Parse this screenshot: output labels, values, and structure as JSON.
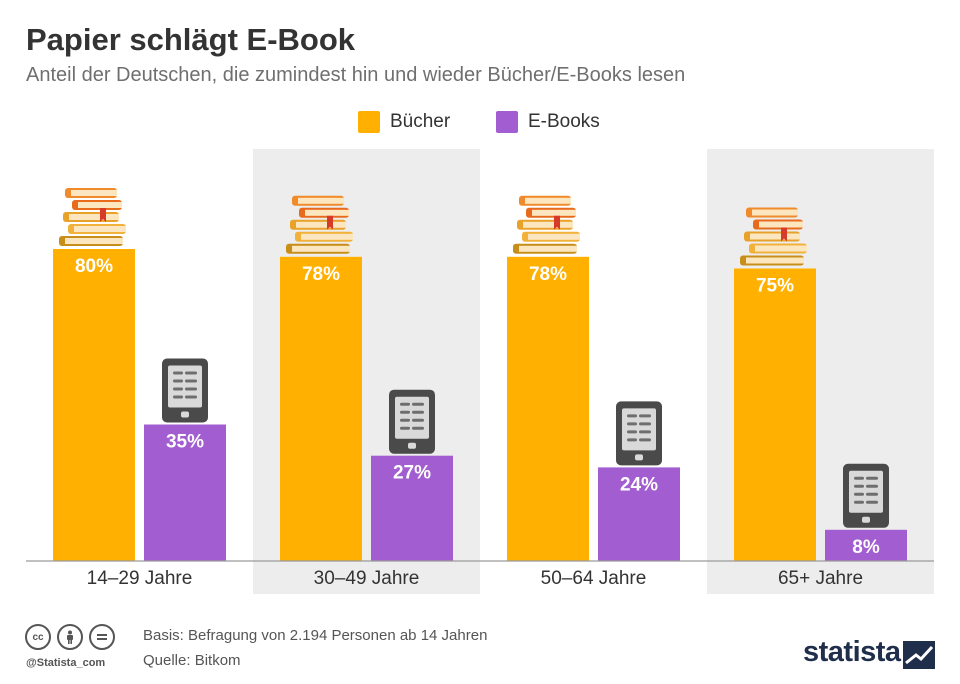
{
  "header": {
    "title": "Papier schlägt E-Book",
    "subtitle": "Anteil der Deutschen, die zumindest hin und wieder Bücher/E-Books lesen"
  },
  "legend": {
    "buecher": "Bücher",
    "ebooks": "E-Books"
  },
  "colors": {
    "buecher": "#FFB000",
    "ebooks": "#A25DD0",
    "band": "#EDEDED"
  },
  "chart_data": {
    "type": "bar",
    "categories": [
      "14–29 Jahre",
      "30–49 Jahre",
      "50–64 Jahre",
      "65+ Jahre"
    ],
    "series": [
      {
        "name": "Bücher",
        "values": [
          80,
          78,
          78,
          75
        ],
        "labels": [
          "80%",
          "78%",
          "78%",
          "75%"
        ],
        "icon": "book-stack-icon"
      },
      {
        "name": "E-Books",
        "values": [
          35,
          27,
          24,
          8
        ],
        "labels": [
          "35%",
          "27%",
          "24%",
          "8%"
        ],
        "icon": "ereader-icon"
      }
    ],
    "title": "Papier schlägt E-Book",
    "subtitle": "Anteil der Deutschen, die zumindest hin und wieder Bücher/E-Books lesen",
    "ylim": [
      0,
      100
    ],
    "grid": false,
    "legend_position": "top-center",
    "alternating_band_columns": [
      1,
      3
    ]
  },
  "footer": {
    "basis": "Basis: Befragung von 2.194 Personen ab 14 Jahren",
    "quelle": "Quelle: Bitkom",
    "handle": "@Statista_com",
    "license_icons": [
      "cc-icon",
      "by-icon",
      "nd-icon"
    ],
    "brand": "statista"
  }
}
